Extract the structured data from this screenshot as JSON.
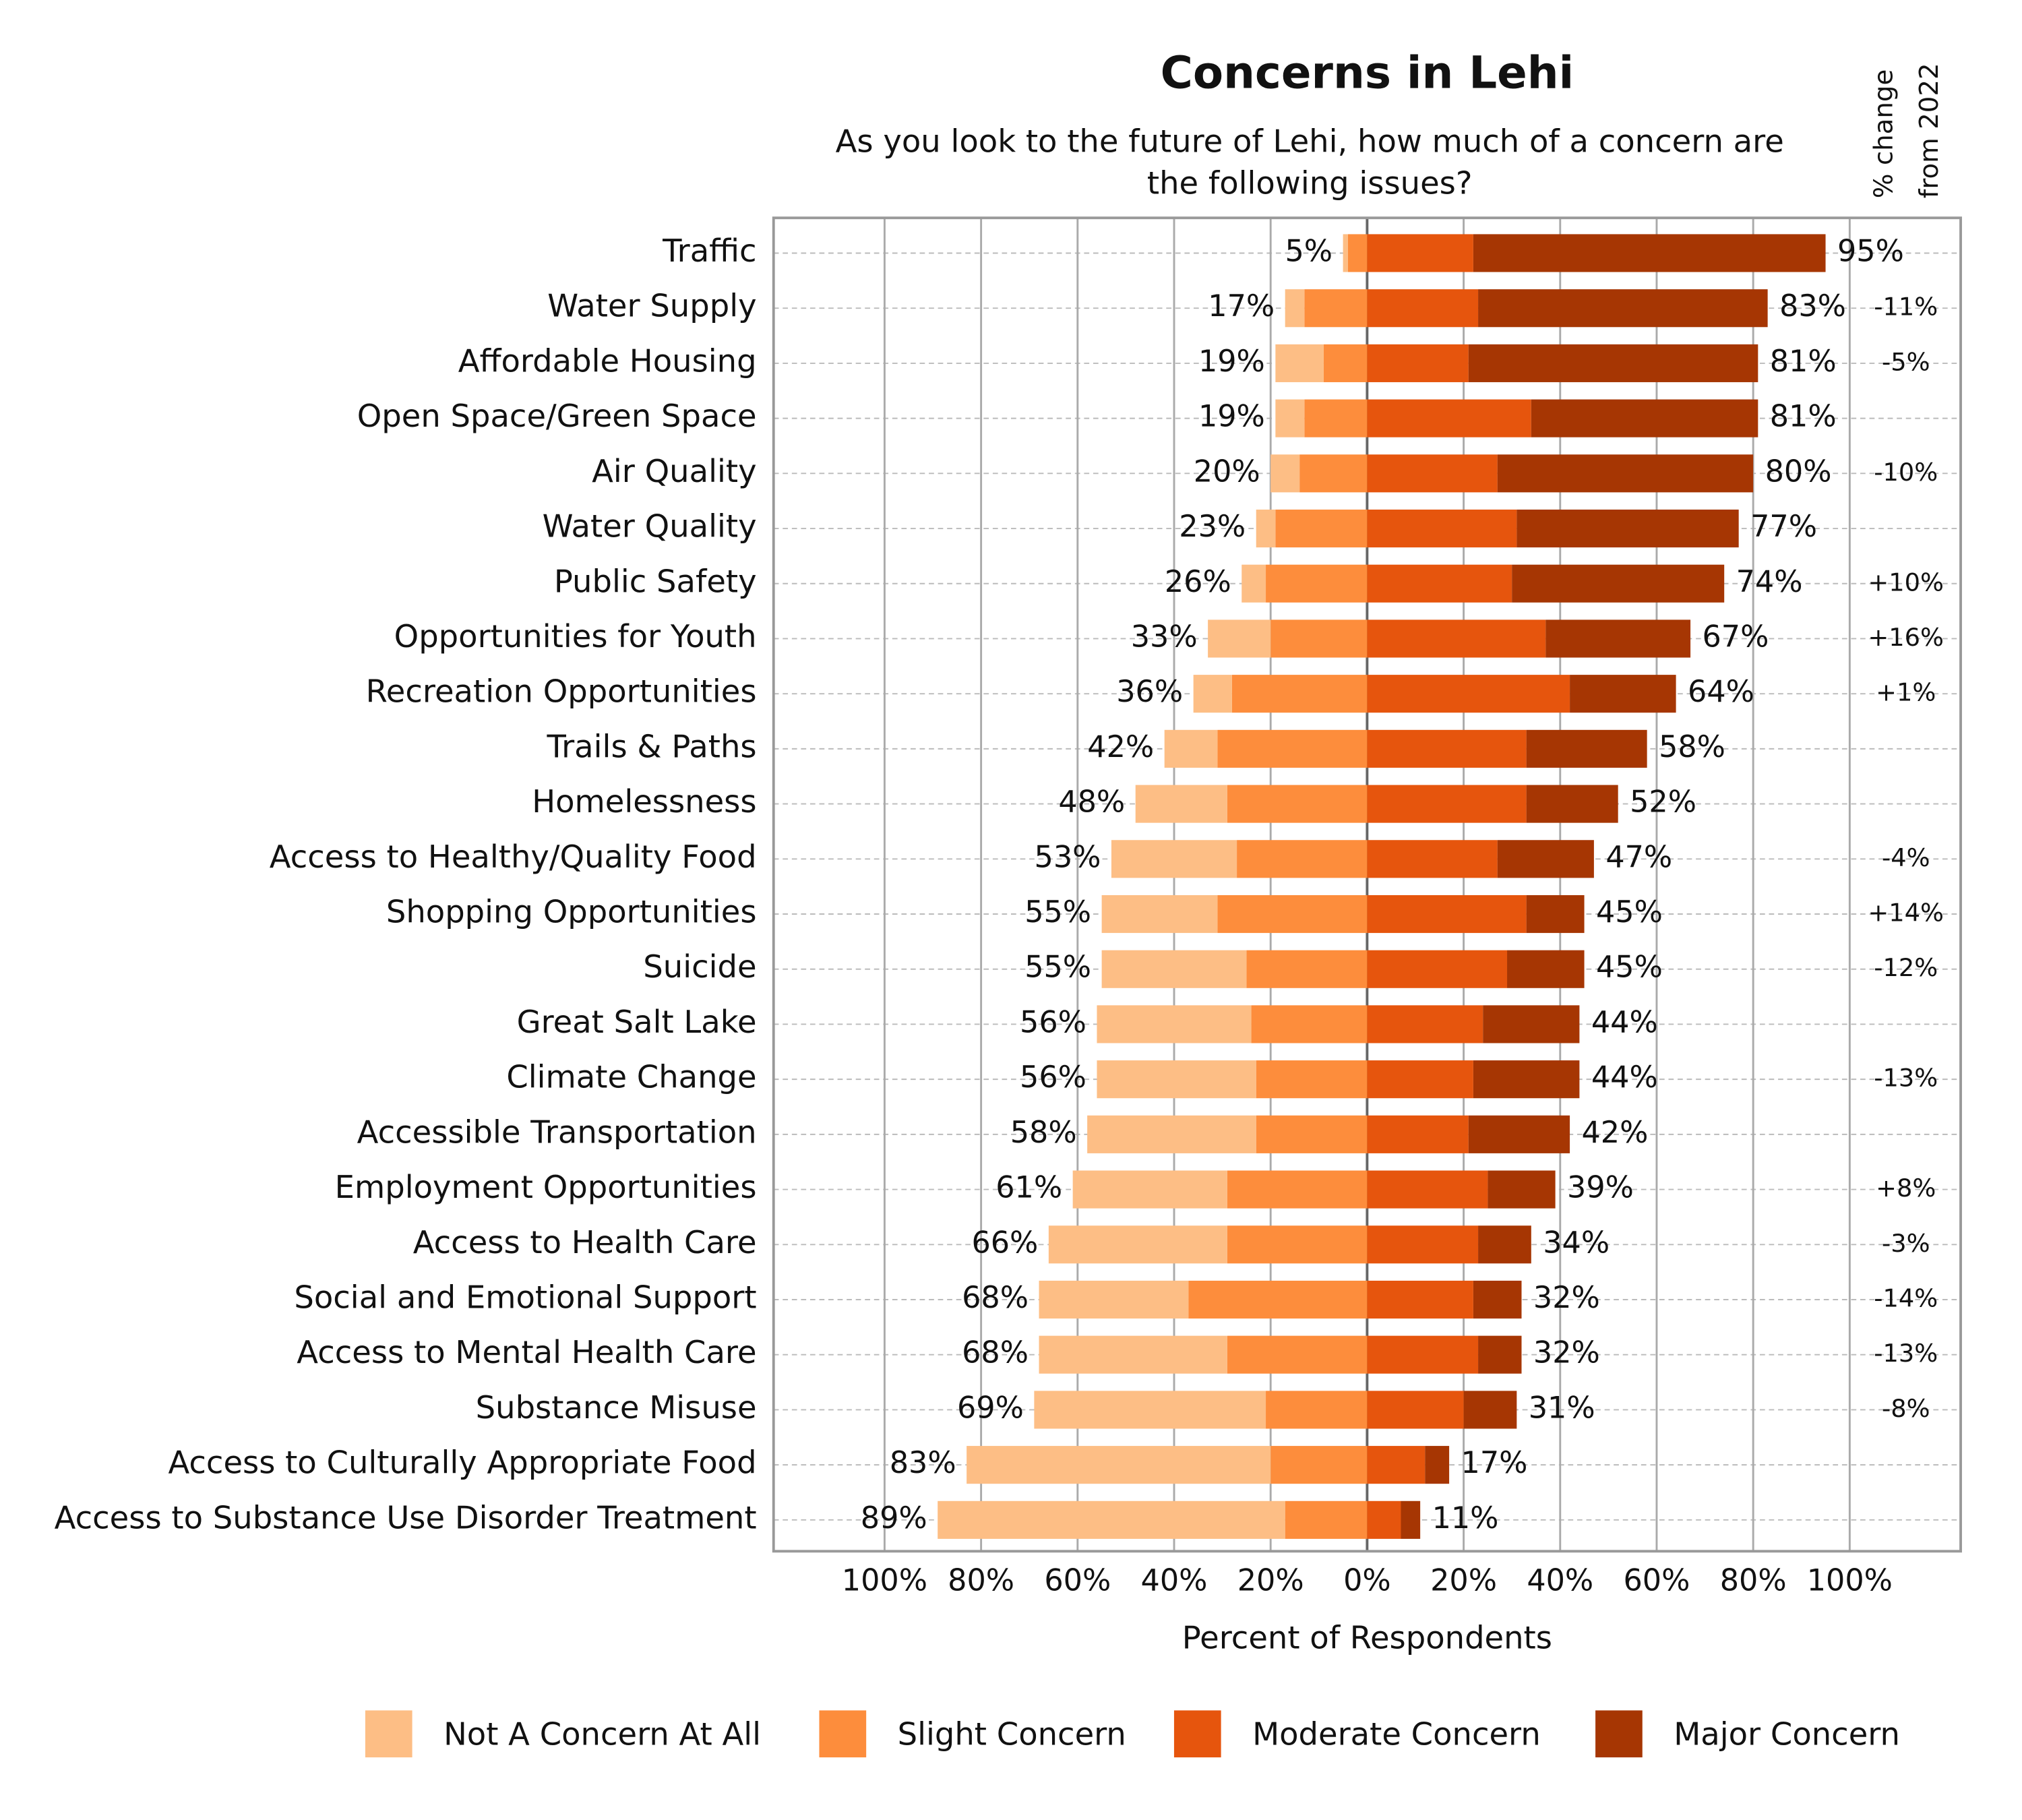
{
  "chart_data": {
    "type": "diverging_bar",
    "title": "Concerns in Lehi",
    "subtitle": [
      "As you look to the future of Lehi, how much of a concern are",
      "the following issues?"
    ],
    "x_label": "Percent of Respondents",
    "categories": [
      "Traffic",
      "Water Supply",
      "Affordable Housing",
      "Open Space/Green Space",
      "Air Quality",
      "Water Quality",
      "Public Safety",
      "Opportunities for Youth",
      "Recreation Opportunities",
      "Trails & Paths",
      "Homelessness",
      "Access to Healthy/Quality Food",
      "Shopping Opportunities",
      "Suicide",
      "Great Salt Lake",
      "Climate Change",
      "Accessible Transportation",
      "Employment Opportunities",
      "Access to Health Care",
      "Social and Emotional Support",
      "Access to Mental Health Care",
      "Substance Misuse",
      "Access to Culturally Appropriate Food",
      "Access to Substance Use Disorder Treatment"
    ],
    "series": [
      {
        "name": "Not A Concern At All",
        "color": "#fdbe85",
        "direction": "left",
        "values": [
          1,
          4,
          10,
          6,
          6,
          4,
          5,
          13,
          8,
          11,
          19,
          26,
          24,
          30,
          32,
          33,
          35,
          32,
          37,
          31,
          39,
          48,
          63,
          72
        ]
      },
      {
        "name": "Slight Concern",
        "color": "#fd8d3c",
        "direction": "left",
        "values": [
          4,
          13,
          9,
          13,
          14,
          19,
          21,
          20,
          28,
          31,
          29,
          27,
          31,
          25,
          24,
          23,
          23,
          29,
          29,
          37,
          29,
          21,
          20,
          17
        ]
      },
      {
        "name": "Moderate Concern",
        "color": "#e6550d",
        "direction": "right",
        "values": [
          22,
          23,
          21,
          34,
          27,
          31,
          30,
          37,
          42,
          33,
          33,
          27,
          33,
          29,
          24,
          22,
          21,
          25,
          23,
          22,
          23,
          20,
          12,
          7
        ]
      },
      {
        "name": "Major Concern",
        "color": "#a63603",
        "direction": "right",
        "values": [
          73,
          60,
          60,
          47,
          53,
          46,
          44,
          30,
          22,
          25,
          19,
          20,
          12,
          16,
          20,
          22,
          21,
          14,
          11,
          10,
          9,
          11,
          5,
          4
        ]
      }
    ],
    "left_totals": {
      "values": [
        5,
        17,
        19,
        19,
        20,
        23,
        26,
        33,
        36,
        42,
        48,
        53,
        55,
        55,
        56,
        56,
        58,
        61,
        66,
        68,
        68,
        69,
        83,
        89
      ],
      "value_labels": [
        "5%",
        "17%",
        "19%",
        "19%",
        "20%",
        "23%",
        "26%",
        "33%",
        "36%",
        "42%",
        "48%",
        "53%",
        "55%",
        "55%",
        "56%",
        "56%",
        "58%",
        "61%",
        "66%",
        "68%",
        "68%",
        "69%",
        "83%",
        "89%"
      ]
    },
    "right_totals": {
      "values": [
        95,
        83,
        81,
        81,
        80,
        77,
        74,
        67,
        64,
        58,
        52,
        47,
        45,
        45,
        44,
        44,
        42,
        39,
        34,
        32,
        32,
        31,
        17,
        11
      ],
      "value_labels": [
        "95%",
        "83%",
        "81%",
        "81%",
        "80%",
        "77%",
        "74%",
        "67%",
        "64%",
        "58%",
        "52%",
        "47%",
        "45%",
        "45%",
        "44%",
        "44%",
        "42%",
        "39%",
        "34%",
        "32%",
        "32%",
        "31%",
        "17%",
        "11%"
      ]
    },
    "change_from_2022": {
      "title": [
        "% change",
        "from 2022"
      ],
      "positive_color": "#8b0000",
      "negative_color": "#00008b",
      "values": [
        null,
        -11,
        -5,
        null,
        -10,
        null,
        10,
        16,
        1,
        null,
        null,
        -4,
        14,
        -12,
        null,
        -13,
        null,
        8,
        -3,
        -14,
        -13,
        -8,
        null,
        null
      ],
      "value_labels": [
        null,
        "-11%",
        "-5%",
        null,
        "-10%",
        null,
        "+10%",
        "+16%",
        "+1%",
        null,
        null,
        "-4%",
        "+14%",
        "-12%",
        null,
        "-13%",
        null,
        "+8%",
        "-3%",
        "-14%",
        "-13%",
        "-8%",
        null,
        null
      ]
    },
    "xlim": [
      -123,
      123
    ],
    "xticks": [
      {
        "value": -100,
        "label": "100%"
      },
      {
        "value": -80,
        "label": "80%"
      },
      {
        "value": -60,
        "label": "60%"
      },
      {
        "value": -40,
        "label": "40%"
      },
      {
        "value": -20,
        "label": "20%"
      },
      {
        "value": 0,
        "label": "0%"
      },
      {
        "value": 20,
        "label": "20%"
      },
      {
        "value": 40,
        "label": "40%"
      },
      {
        "value": 60,
        "label": "60%"
      },
      {
        "value": 80,
        "label": "80%"
      },
      {
        "value": 100,
        "label": "100%"
      }
    ],
    "grid": true,
    "legend": "bottom"
  }
}
